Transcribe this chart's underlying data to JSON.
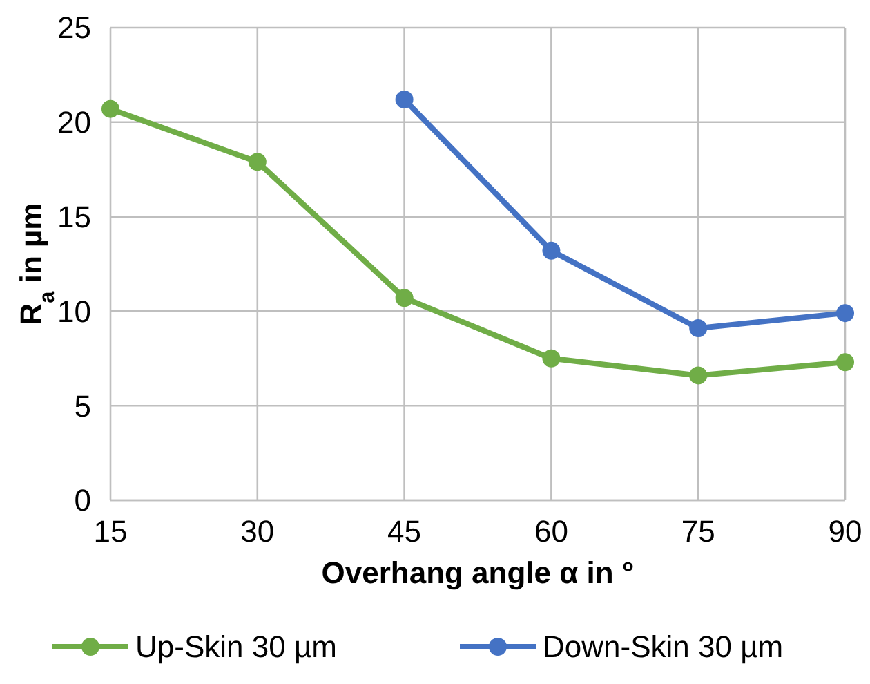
{
  "chart_data": {
    "type": "line",
    "xlabel": "Overhang angle α in °",
    "ylabel": "R$_{a}$ in µm",
    "categories": [
      "15",
      "30",
      "45",
      "60",
      "75",
      "90"
    ],
    "series": [
      {
        "name": "Up-Skin 30 µm",
        "color": "#70ad47",
        "values": [
          20.7,
          17.9,
          10.7,
          7.5,
          6.6,
          7.3
        ]
      },
      {
        "name": "Down-Skin 30 µm",
        "color": "#4472c4",
        "values": [
          null,
          null,
          21.2,
          13.2,
          9.1,
          9.9
        ]
      }
    ],
    "ylim": [
      0,
      25
    ],
    "yticks": [
      0,
      5,
      10,
      15,
      20,
      25
    ],
    "grid": true,
    "legend": "bottom",
    "marker": "circle",
    "line_style": "solid"
  }
}
